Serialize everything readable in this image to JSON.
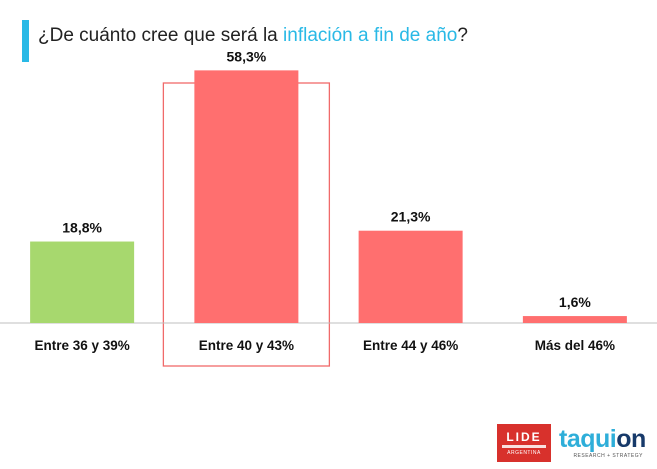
{
  "colors": {
    "accent": "#29b9e6",
    "title_text": "#222222",
    "bar_green": "#a7d86e",
    "bar_red": "#ff6f6f",
    "highlight_box": "#f06a6a",
    "baseline": "#bfbfbf",
    "lide_red": "#d8312c",
    "taquion_blue": "#2eaed9",
    "taquion_dark": "#173a6a"
  },
  "header": {
    "title_pre": "¿De cuánto cree que será la ",
    "title_highlight": "inflación a fin de año",
    "title_post": "?"
  },
  "chart_data": {
    "type": "bar",
    "categories": [
      "Entre 36 y 39%",
      "Entre 40 y 43%",
      "Entre 44 y 46%",
      "Más del 46%"
    ],
    "values": [
      18.8,
      58.3,
      21.3,
      1.6
    ],
    "value_labels": [
      "18,8%",
      "58,3%",
      "21,3%",
      "1,6%"
    ],
    "bar_colors": [
      "#a7d86e",
      "#ff6f6f",
      "#ff6f6f",
      "#ff6f6f"
    ],
    "highlighted_category": "Entre 40 y 43%",
    "title": "¿De cuánto cree que será la inflación a fin de año?",
    "xlabel": "",
    "ylabel": "",
    "ylim": [
      0,
      60
    ],
    "grid": false,
    "legend": "none"
  },
  "logos": {
    "lide": {
      "name": "LIDE",
      "subtitle": "ARGENTINA",
      "icon": "lide-logo"
    },
    "taquion": {
      "name_part1": "taqui",
      "name_part2": "on",
      "subtitle": "RESEARCH + STRATEGY",
      "icon": "taquion-logo"
    }
  }
}
